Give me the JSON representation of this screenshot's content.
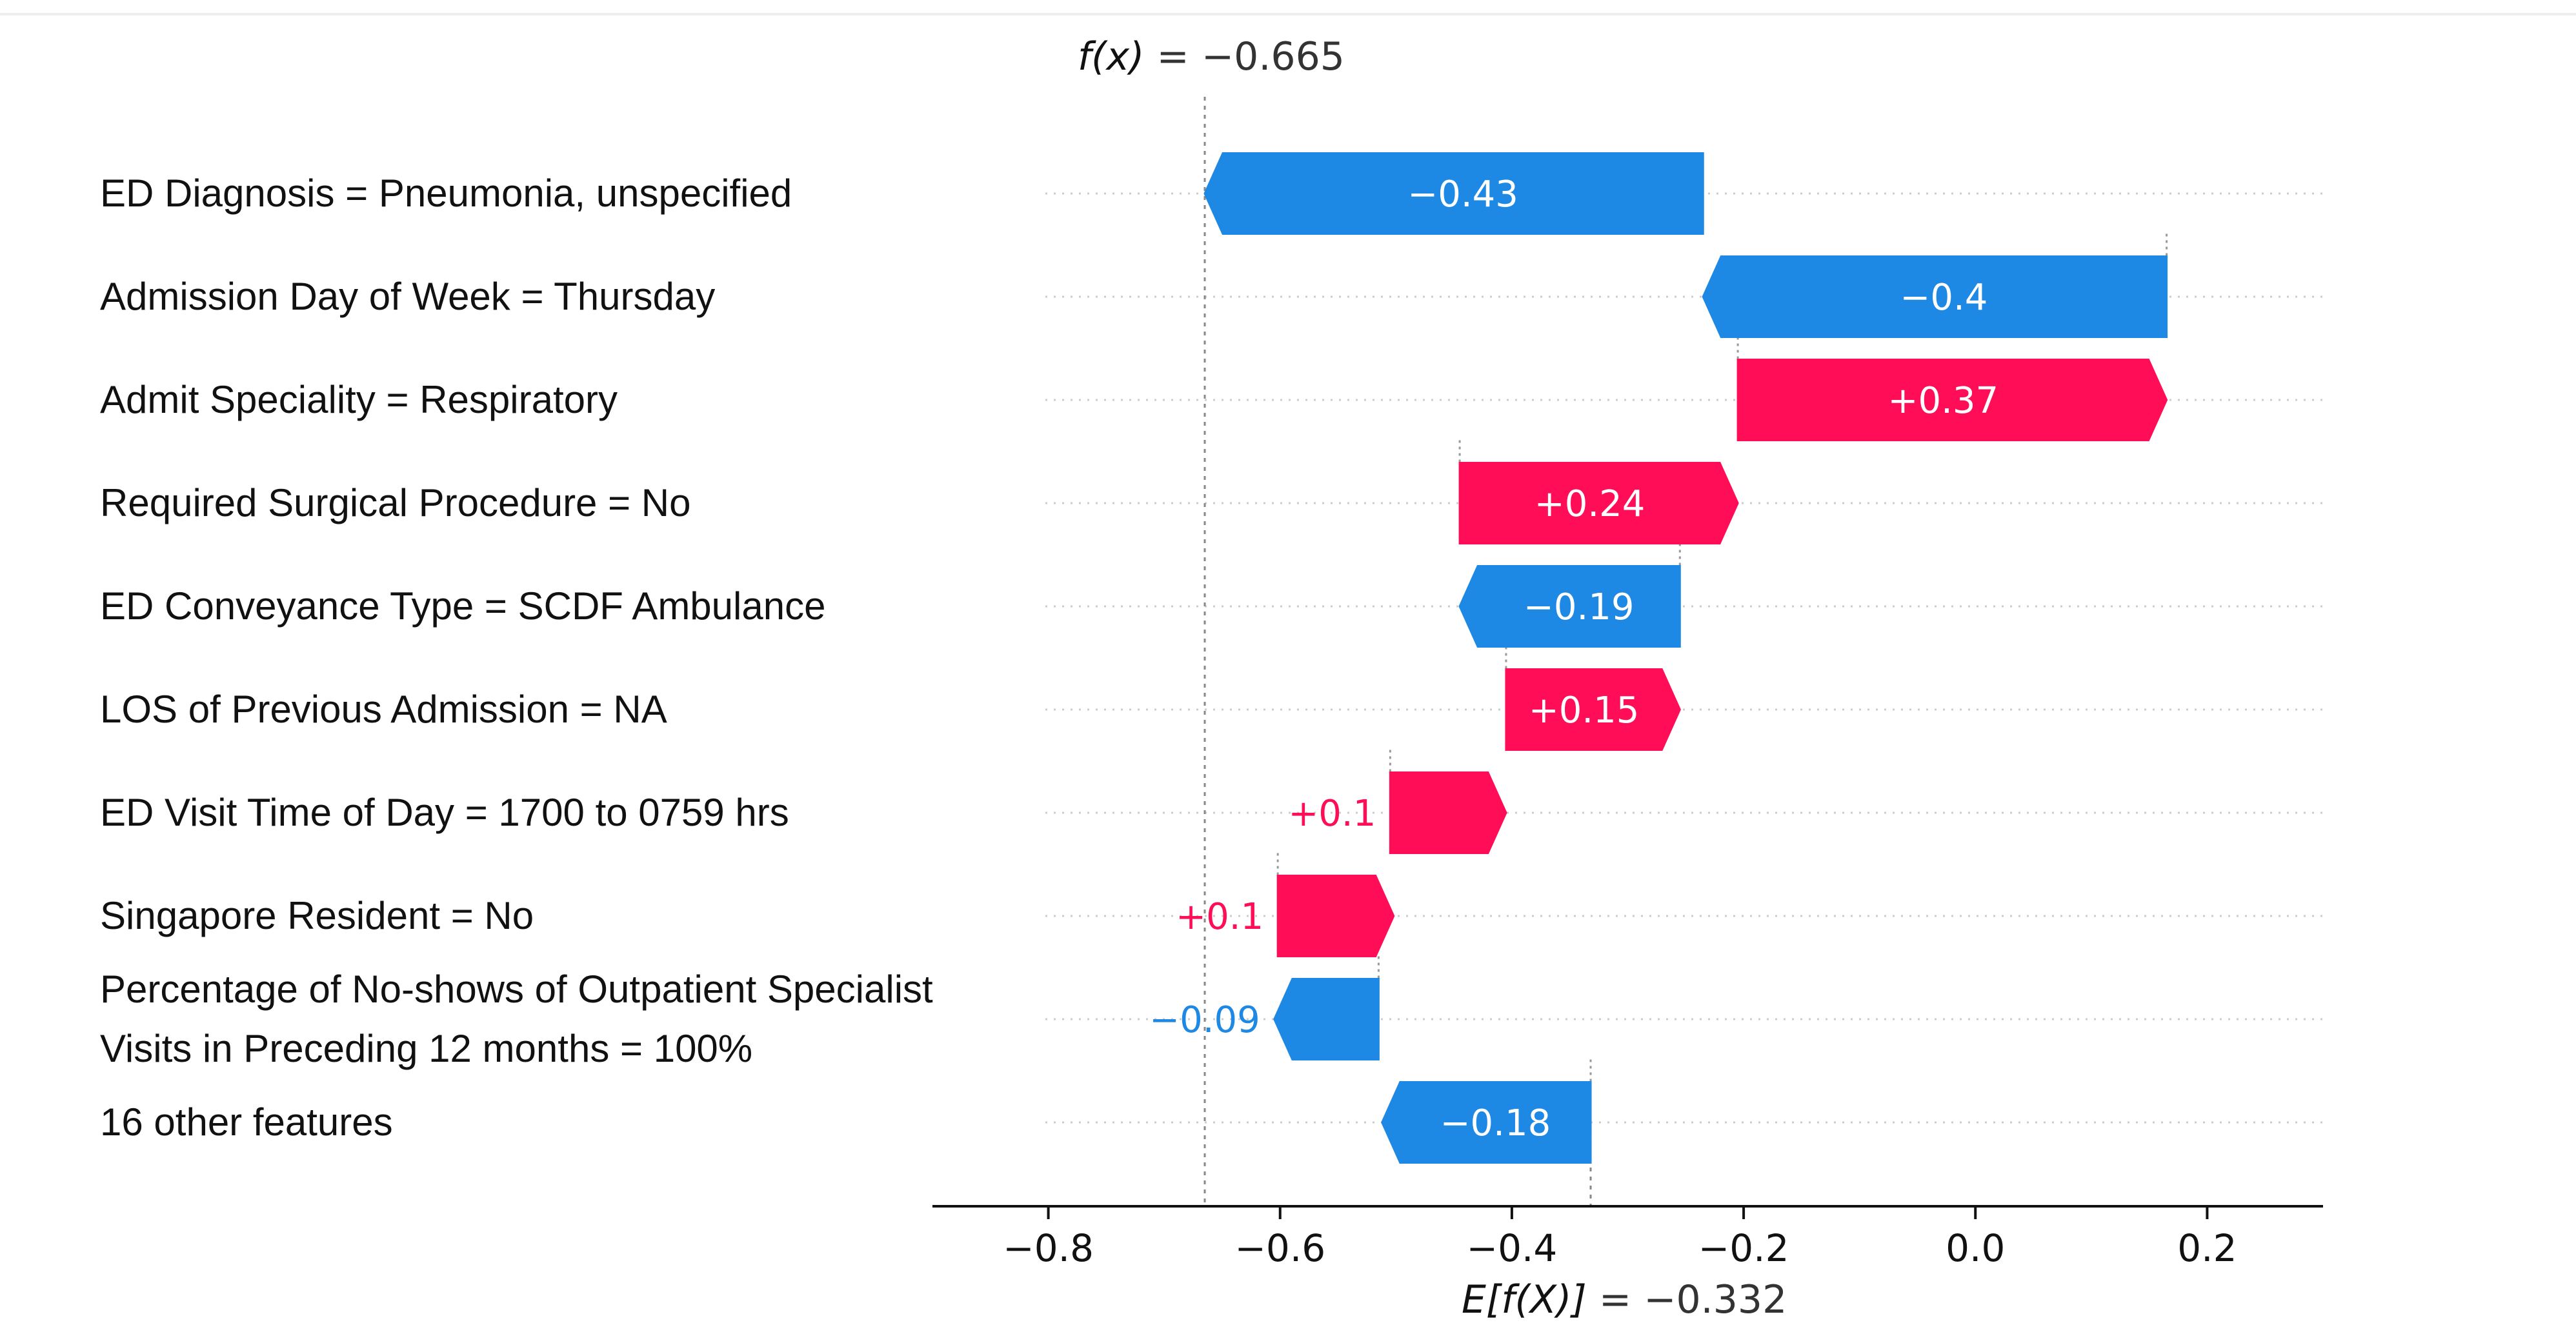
{
  "chart_data": {
    "type": "waterfall",
    "title": "",
    "fx_label": "f(x)",
    "fx_value_text": " = −0.665",
    "fx": -0.665,
    "efx_label": "E[f(X)]",
    "efx_value_text": " = −0.332",
    "efx": -0.332,
    "xlim": [
      -0.9,
      0.3
    ],
    "ticks": [
      -0.8,
      -0.6,
      -0.4,
      -0.2,
      0.0,
      0.2
    ],
    "tick_labels": [
      "−0.8",
      "−0.6",
      "−0.4",
      "−0.2",
      "0.0",
      "0.2"
    ],
    "positive_color": "#ff0d57",
    "negative_color": "#1e88e5",
    "features": [
      {
        "label_lines": [
          "ED Diagnosis = Pneumonia, unspecified"
        ],
        "value": -0.43,
        "value_text": "−0.43",
        "start": -0.235
      },
      {
        "label_lines": [
          "Admission Day of Week = Thursday"
        ],
        "value": -0.4,
        "value_text": "−0.4",
        "start": 0.165
      },
      {
        "label_lines": [
          "Admit Speciality = Respiratory"
        ],
        "value": 0.37,
        "value_text": "+0.37",
        "start": -0.205
      },
      {
        "label_lines": [
          "Required Surgical Procedure = No"
        ],
        "value": 0.24,
        "value_text": "+0.24",
        "start": -0.445
      },
      {
        "label_lines": [
          "ED Conveyance Type = SCDF Ambulance"
        ],
        "value": -0.19,
        "value_text": "−0.19",
        "start": -0.255
      },
      {
        "label_lines": [
          "LOS of Previous Admission = NA"
        ],
        "value": 0.15,
        "value_text": "+0.15",
        "start": -0.405
      },
      {
        "label_lines": [
          "ED Visit Time of Day = 1700 to 0759 hrs"
        ],
        "value": 0.1,
        "value_text": "+0.1",
        "start": -0.505
      },
      {
        "label_lines": [
          "Singapore Resident = No"
        ],
        "value": 0.1,
        "value_text": "+0.1",
        "start": -0.602
      },
      {
        "label_lines": [
          "Percentage of No-shows of Outpatient Specialist",
          "Visits in Preceding 12 months  = 100%"
        ],
        "value": -0.09,
        "value_text": "−0.09",
        "start": -0.515
      },
      {
        "label_lines": [
          "16 other features"
        ],
        "value": -0.18,
        "value_text": "−0.18",
        "start": -0.332
      }
    ]
  }
}
